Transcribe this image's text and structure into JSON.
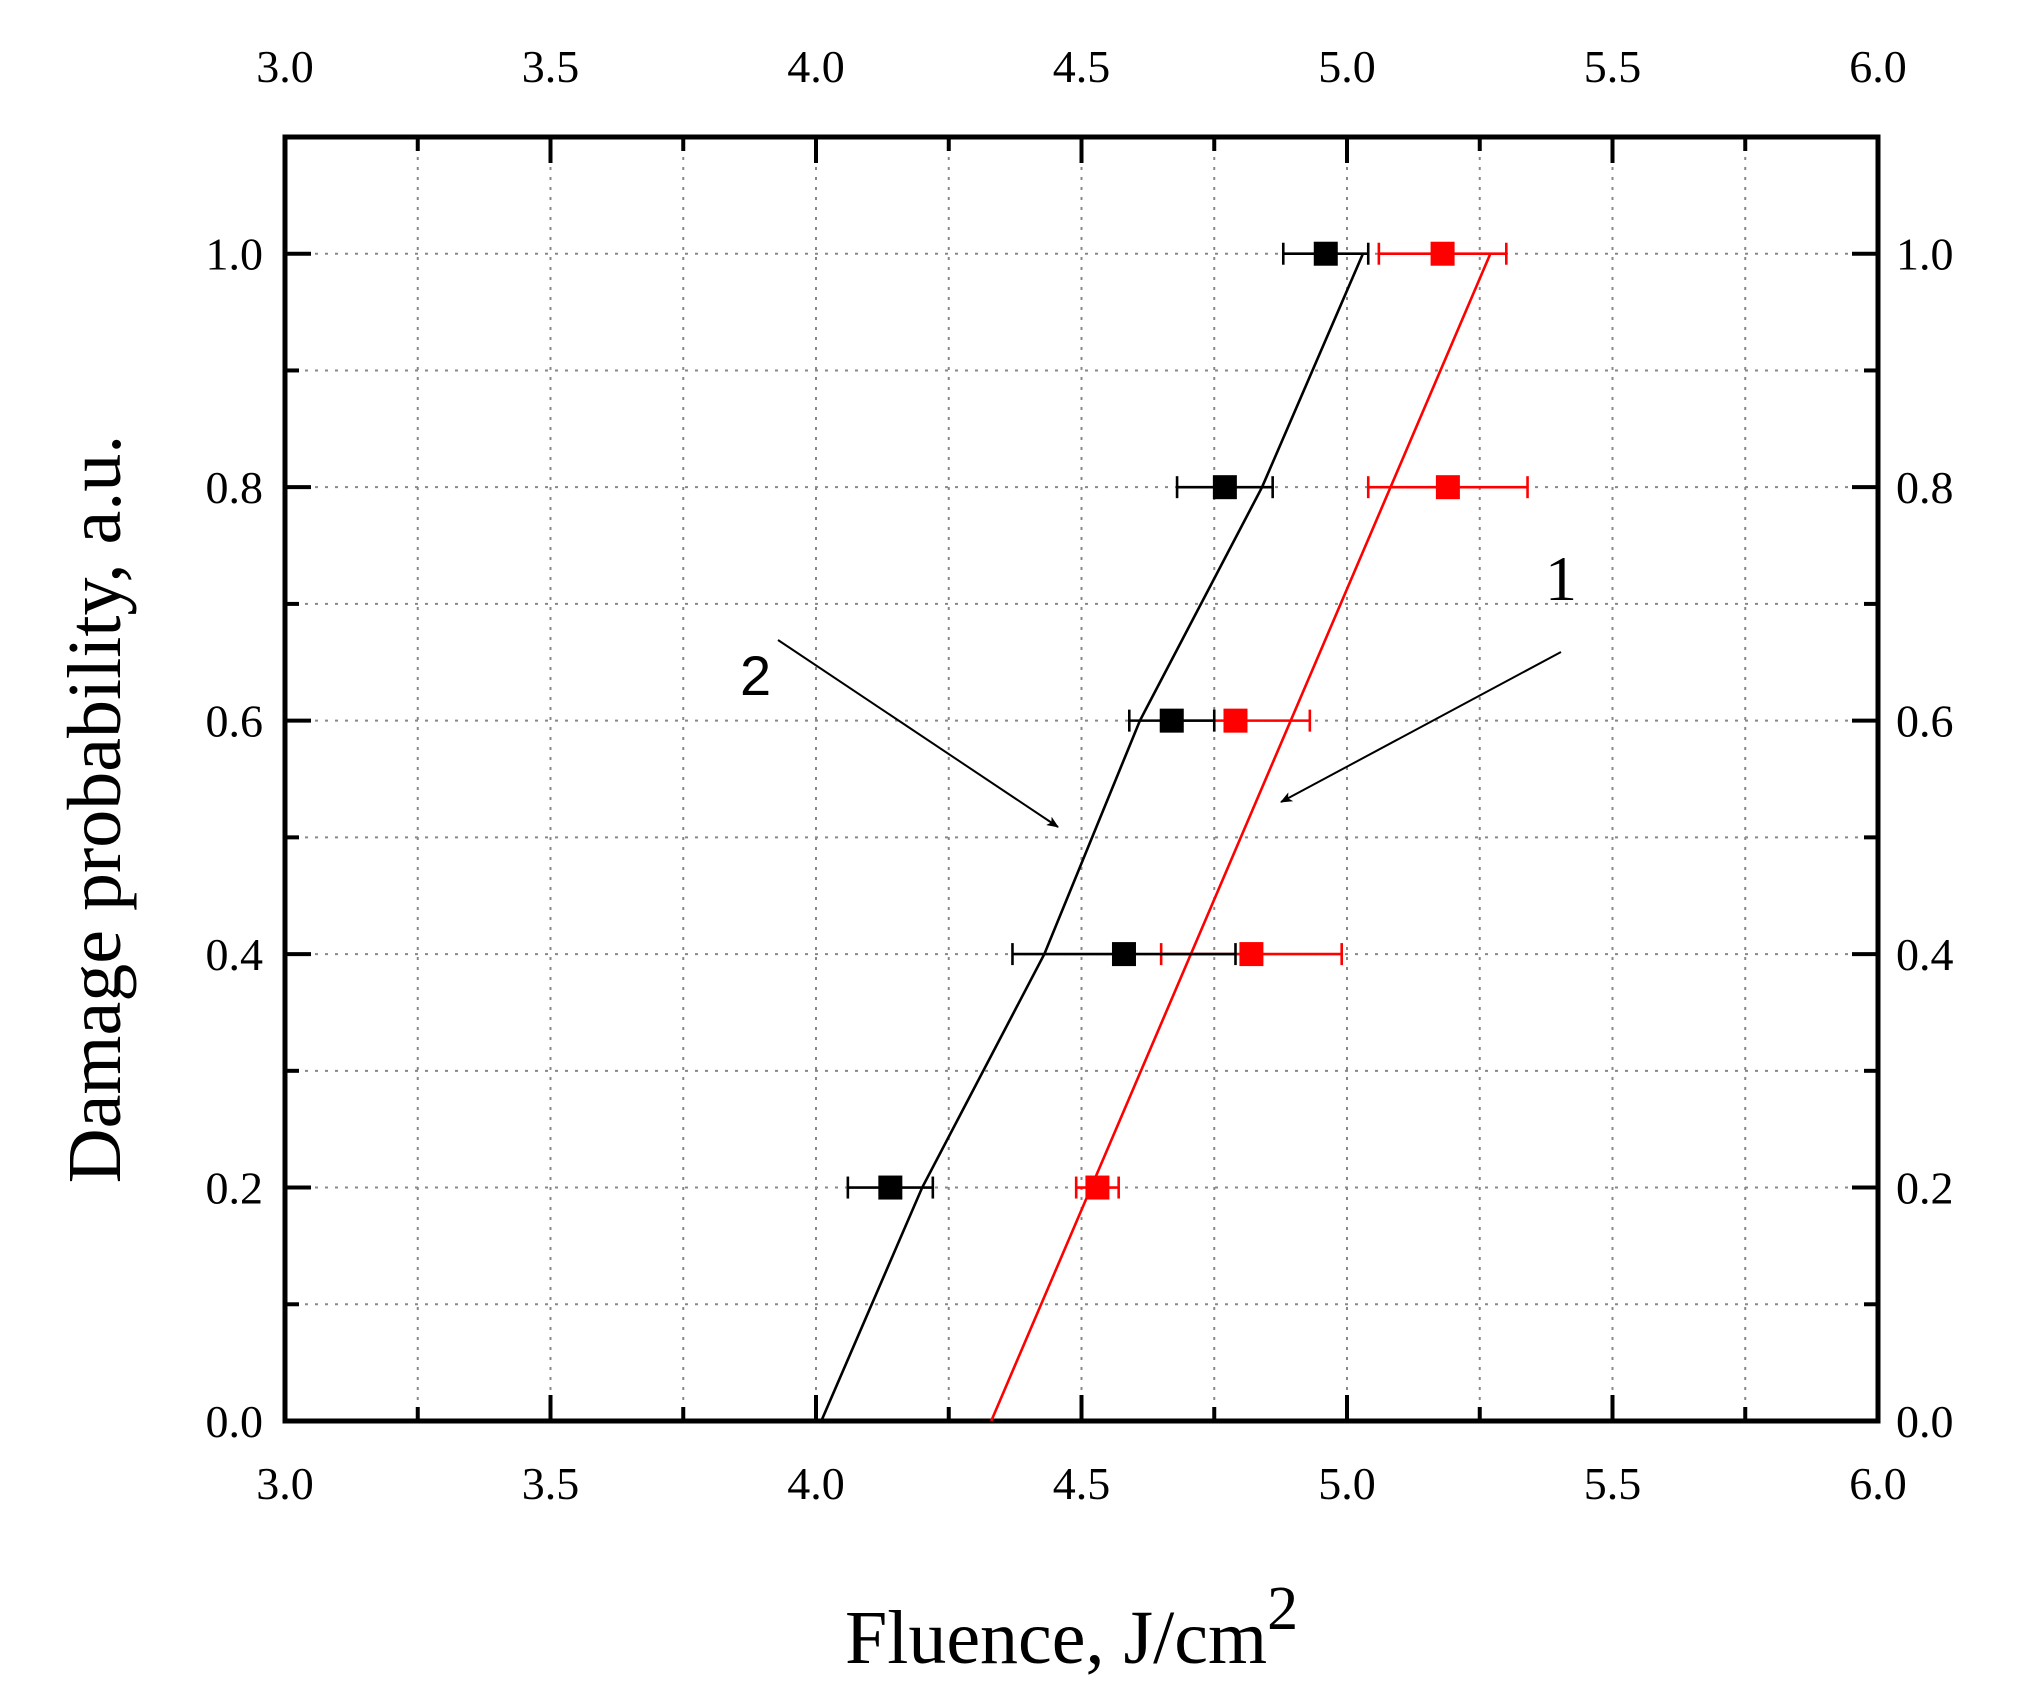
{
  "chart_data": {
    "type": "scatter",
    "xlabel": "Fluence, J/cm",
    "xlabel_superscript": "2",
    "ylabel": "Damage probability, a.u.",
    "xlim": [
      3.0,
      6.0
    ],
    "ylim": [
      0.0,
      1.1
    ],
    "x_ticks": [
      "3.0",
      "3.5",
      "4.0",
      "4.5",
      "5.0",
      "5.5",
      "6.0"
    ],
    "y_ticks": [
      "0.0",
      "0.2",
      "0.4",
      "0.6",
      "0.8",
      "1.0"
    ],
    "grid": true,
    "axes_mirrored": "top-and-right",
    "series": [
      {
        "color": "#ff0000",
        "marker": "square",
        "points": [
          {
            "x": 4.53,
            "y": 0.2,
            "xerr": 0.04
          },
          {
            "x": 4.82,
            "y": 0.4,
            "xerr": 0.17
          },
          {
            "x": 4.79,
            "y": 0.6,
            "xerr": 0.14
          },
          {
            "x": 5.19,
            "y": 0.8,
            "xerr": 0.15
          },
          {
            "x": 5.18,
            "y": 1.0,
            "xerr": 0.12
          }
        ],
        "fit_line": [
          [
            4.33,
            0.0
          ],
          [
            5.27,
            1.0
          ]
        ]
      },
      {
        "color": "#000000",
        "marker": "square",
        "points": [
          {
            "x": 4.14,
            "y": 0.2,
            "xerr": 0.08
          },
          {
            "x": 4.58,
            "y": 0.4,
            "xerr": 0.21
          },
          {
            "x": 4.67,
            "y": 0.6,
            "xerr": 0.08
          },
          {
            "x": 4.77,
            "y": 0.8,
            "xerr": 0.09
          },
          {
            "x": 4.96,
            "y": 1.0,
            "xerr": 0.08
          }
        ],
        "fit_line": [
          [
            4.01,
            0.0
          ],
          [
            4.2,
            0.2
          ],
          [
            4.43,
            0.4
          ],
          [
            4.61,
            0.6
          ],
          [
            4.84,
            0.8
          ],
          [
            5.03,
            1.0
          ]
        ]
      }
    ],
    "annotations": [
      {
        "text": "1",
        "series_index": 0
      },
      {
        "text": "2",
        "series_index": 1
      }
    ]
  }
}
